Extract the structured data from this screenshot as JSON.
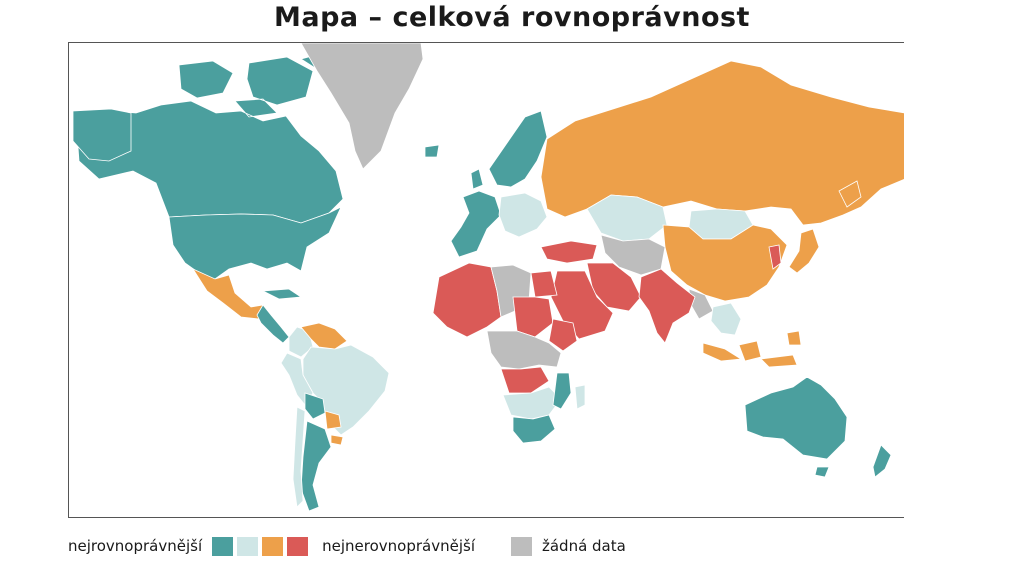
{
  "title": "Mapa – celková rovnoprávnost",
  "colors": {
    "most_equal": "#4b9f9e",
    "equal": "#cfe6e6",
    "unequal": "#eda04a",
    "most_unequal": "#da5a57",
    "no_data": "#bdbdbd",
    "ocean": "#ffffff"
  },
  "legend": {
    "left_label": "nejrovnoprávnější",
    "right_label": "nejnerovnoprávnější",
    "nodata_label": "žádná data",
    "swatches": [
      "most_equal",
      "equal",
      "unequal",
      "most_unequal"
    ]
  },
  "regions": [
    {
      "name": "Kanada",
      "category": "most_equal"
    },
    {
      "name": "USA",
      "category": "most_equal"
    },
    {
      "name": "Grónsko",
      "category": "no_data"
    },
    {
      "name": "Mexiko",
      "category": "unequal"
    },
    {
      "name": "Střední Amerika",
      "category": "most_equal"
    },
    {
      "name": "Kolumbie",
      "category": "equal"
    },
    {
      "name": "Venezuela",
      "category": "unequal"
    },
    {
      "name": "Brazílie",
      "category": "equal"
    },
    {
      "name": "Peru",
      "category": "equal"
    },
    {
      "name": "Bolívie",
      "category": "most_equal"
    },
    {
      "name": "Paraguay",
      "category": "unequal"
    },
    {
      "name": "Argentina",
      "category": "most_equal"
    },
    {
      "name": "Chile",
      "category": "equal"
    },
    {
      "name": "Severní Evropa",
      "category": "most_equal"
    },
    {
      "name": "Západní Evropa",
      "category": "most_equal"
    },
    {
      "name": "Střední Evropa",
      "category": "equal"
    },
    {
      "name": "Rusko",
      "category": "unequal"
    },
    {
      "name": "Kazachstán",
      "category": "equal"
    },
    {
      "name": "Mongolsko",
      "category": "equal"
    },
    {
      "name": "Čína",
      "category": "unequal"
    },
    {
      "name": "Japonsko",
      "category": "unequal"
    },
    {
      "name": "Korea",
      "category": "most_unequal"
    },
    {
      "name": "Turecko",
      "category": "most_unequal"
    },
    {
      "name": "Střední Asie",
      "category": "no_data"
    },
    {
      "name": "Írán",
      "category": "most_unequal"
    },
    {
      "name": "Arabský poloostrov",
      "category": "most_unequal"
    },
    {
      "name": "Indie",
      "category": "most_unequal"
    },
    {
      "name": "Jihovýchodní Asie",
      "category": "equal"
    },
    {
      "name": "Indonésie",
      "category": "unequal"
    },
    {
      "name": "Austrálie",
      "category": "most_equal"
    },
    {
      "name": "Nový Zéland",
      "category": "most_equal"
    },
    {
      "name": "Západní Afrika",
      "category": "most_unequal"
    },
    {
      "name": "Sahara",
      "category": "no_data"
    },
    {
      "name": "Egypt",
      "category": "most_unequal"
    },
    {
      "name": "Súdán",
      "category": "most_unequal"
    },
    {
      "name": "Etiopie",
      "category": "most_unequal"
    },
    {
      "name": "Střední Afrika",
      "category": "no_data"
    },
    {
      "name": "Kongo",
      "category": "most_unequal"
    },
    {
      "name": "Angola",
      "category": "equal"
    },
    {
      "name": "Mosambik",
      "category": "most_equal"
    },
    {
      "name": "Jižní Afrika",
      "category": "most_equal"
    },
    {
      "name": "Madagaskar",
      "category": "equal"
    }
  ]
}
